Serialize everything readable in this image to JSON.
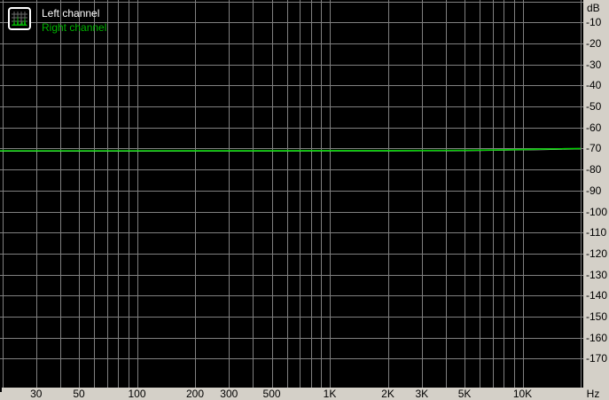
{
  "legend": {
    "left_label": "Left channel",
    "right_label": "Right channel"
  },
  "axes": {
    "y_unit": "dB",
    "x_unit": "Hz",
    "y_ticks": [
      {
        "db": -10,
        "label": "-10"
      },
      {
        "db": -20,
        "label": "-20"
      },
      {
        "db": -30,
        "label": "-30"
      },
      {
        "db": -40,
        "label": "-40"
      },
      {
        "db": -50,
        "label": "-50"
      },
      {
        "db": -60,
        "label": "-60"
      },
      {
        "db": -70,
        "label": "-70"
      },
      {
        "db": -80,
        "label": "-80"
      },
      {
        "db": -90,
        "label": "-90"
      },
      {
        "db": -100,
        "label": "-100"
      },
      {
        "db": -110,
        "label": "-110"
      },
      {
        "db": -120,
        "label": "-120"
      },
      {
        "db": -130,
        "label": "-130"
      },
      {
        "db": -140,
        "label": "-140"
      },
      {
        "db": -150,
        "label": "-150"
      },
      {
        "db": -160,
        "label": "-160"
      },
      {
        "db": -170,
        "label": "-170"
      }
    ],
    "x_ticks": [
      {
        "f": 30,
        "label": "30"
      },
      {
        "f": 50,
        "label": "50"
      },
      {
        "f": 100,
        "label": "100"
      },
      {
        "f": 200,
        "label": "200"
      },
      {
        "f": 300,
        "label": "300"
      },
      {
        "f": 500,
        "label": "500"
      },
      {
        "f": 1000,
        "label": "1K"
      },
      {
        "f": 2000,
        "label": "2K"
      },
      {
        "f": 3000,
        "label": "3K"
      },
      {
        "f": 5000,
        "label": "5K"
      },
      {
        "f": 10000,
        "label": "10K"
      }
    ]
  },
  "colors": {
    "plot_background": "#000000",
    "panel": "#d4d0c8",
    "grid": "#808080",
    "left_channel": "#ffffff",
    "right_channel": "#00cc00",
    "legend_right_text": "#00b400",
    "axis_text": "#000000"
  },
  "chart_data": {
    "type": "line",
    "title": "",
    "xlabel": "Hz",
    "ylabel": "dB",
    "x_scale": "log",
    "xlim": [
      20,
      20000
    ],
    "ylim": [
      -183,
      0
    ],
    "grid": true,
    "legend_position": "top-left",
    "y_gridlines": [
      0,
      -10,
      -20,
      -30,
      -40,
      -50,
      -60,
      -70,
      -80,
      -90,
      -100,
      -110,
      -120,
      -130,
      -140,
      -150,
      -160,
      -170
    ],
    "x_gridlines": [
      20,
      30,
      40,
      50,
      60,
      70,
      80,
      90,
      100,
      200,
      300,
      400,
      500,
      600,
      700,
      800,
      900,
      1000,
      2000,
      3000,
      4000,
      5000,
      6000,
      7000,
      8000,
      9000,
      10000,
      20000
    ],
    "x": [
      19.4,
      30,
      50,
      100,
      200,
      300,
      500,
      1000,
      2000,
      3000,
      5000,
      7000,
      10000,
      13000,
      16000,
      20000
    ],
    "series": [
      {
        "name": "Left channel",
        "color": "#ffffff",
        "values": [
          -71.25,
          -71.25,
          -71.25,
          -71.25,
          -71.2,
          -71.2,
          -71.2,
          -71.15,
          -71.15,
          -71.1,
          -71.0,
          -70.85,
          -70.65,
          -70.45,
          -70.3,
          -70.15
        ]
      },
      {
        "name": "Right channel",
        "color": "#00cc00",
        "values": [
          -71.1,
          -71.1,
          -71.1,
          -71.1,
          -71.05,
          -71.05,
          -71.05,
          -71.0,
          -71.0,
          -70.95,
          -70.85,
          -70.7,
          -70.5,
          -70.3,
          -70.15,
          -70.0
        ]
      }
    ]
  }
}
